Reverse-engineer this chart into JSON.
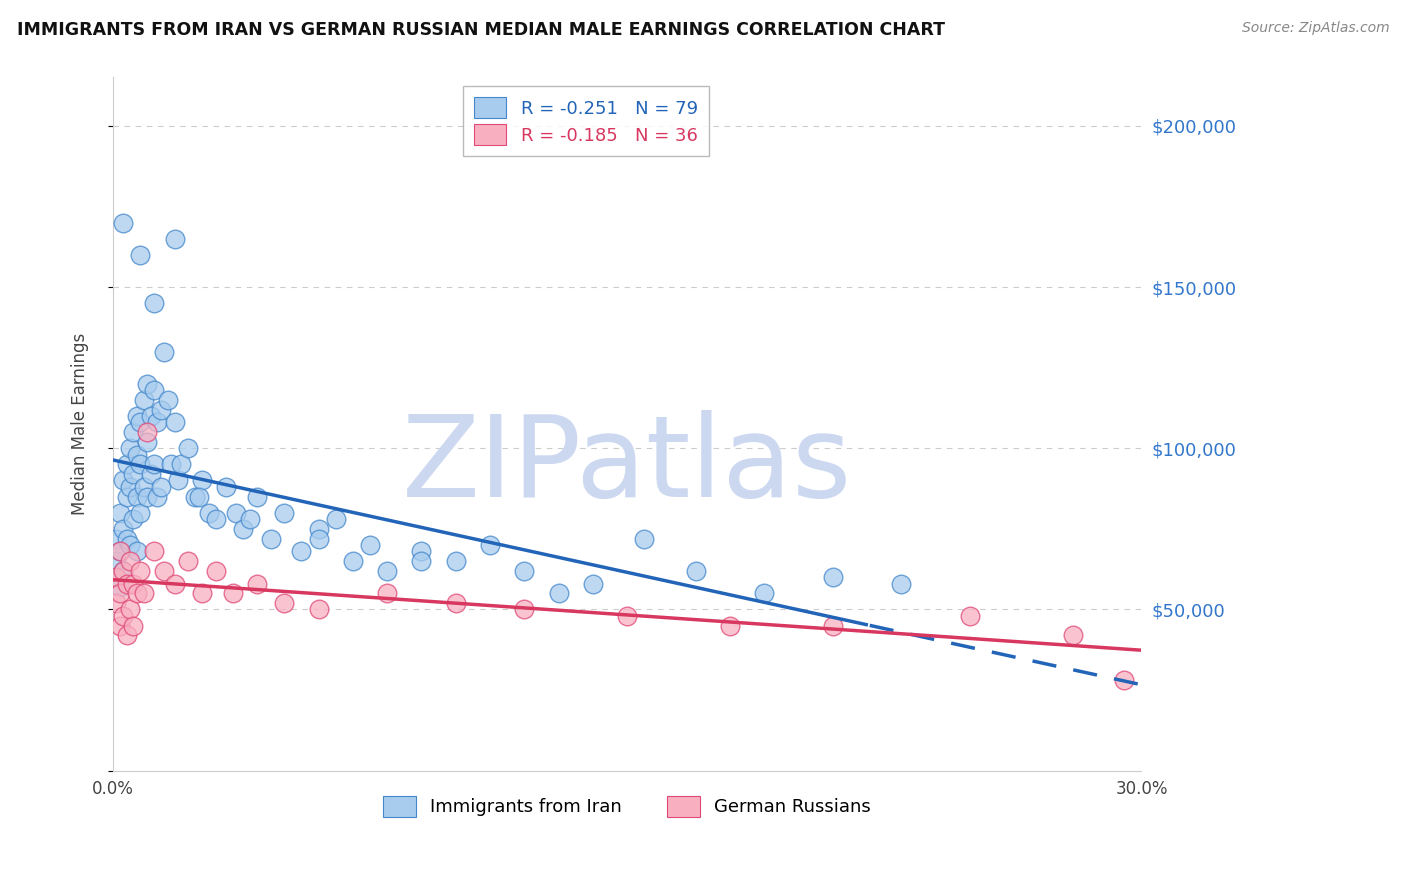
{
  "title": "IMMIGRANTS FROM IRAN VS GERMAN RUSSIAN MEDIAN MALE EARNINGS CORRELATION CHART",
  "source": "Source: ZipAtlas.com",
  "ylabel": "Median Male Earnings",
  "xlim": [
    0.0,
    0.3
  ],
  "ylim": [
    0,
    215000
  ],
  "yticks": [
    0,
    50000,
    100000,
    150000,
    200000
  ],
  "ytick_labels": [
    "",
    "$50,000",
    "$100,000",
    "$150,000",
    "$200,000"
  ],
  "xticks": [
    0.0,
    0.05,
    0.1,
    0.15,
    0.2,
    0.25,
    0.3
  ],
  "xtick_labels": [
    "0.0%",
    "",
    "",
    "",
    "",
    "",
    "30.0%"
  ],
  "series1_label": "Immigrants from Iran",
  "series1_color": "#a8ccee",
  "series1_edge": "#4488cc",
  "series2_label": "German Russians",
  "series2_color": "#f8b0c0",
  "series2_edge": "#e04878",
  "series1_R": "-0.251",
  "series1_N": 79,
  "series2_R": "-0.185",
  "series2_N": 36,
  "trend1_color": "#2264b8",
  "trend2_color": "#d83860",
  "trend1_solid_end": 0.22,
  "watermark": "ZIPatlas",
  "watermark_color": "#ccd8f0",
  "background_color": "#ffffff",
  "iran_x": [
    0.001,
    0.001,
    0.002,
    0.002,
    0.002,
    0.003,
    0.003,
    0.003,
    0.004,
    0.004,
    0.004,
    0.005,
    0.005,
    0.005,
    0.006,
    0.006,
    0.006,
    0.007,
    0.007,
    0.007,
    0.007,
    0.008,
    0.008,
    0.008,
    0.009,
    0.009,
    0.01,
    0.01,
    0.01,
    0.011,
    0.011,
    0.012,
    0.012,
    0.013,
    0.013,
    0.014,
    0.014,
    0.015,
    0.016,
    0.017,
    0.018,
    0.019,
    0.02,
    0.022,
    0.024,
    0.026,
    0.028,
    0.03,
    0.033,
    0.036,
    0.038,
    0.042,
    0.046,
    0.05,
    0.055,
    0.06,
    0.065,
    0.07,
    0.075,
    0.08,
    0.09,
    0.1,
    0.11,
    0.12,
    0.14,
    0.155,
    0.17,
    0.19,
    0.21,
    0.23,
    0.003,
    0.008,
    0.012,
    0.018,
    0.025,
    0.04,
    0.06,
    0.09,
    0.13
  ],
  "iran_y": [
    72000,
    65000,
    80000,
    68000,
    57000,
    90000,
    75000,
    62000,
    95000,
    85000,
    72000,
    100000,
    88000,
    70000,
    105000,
    92000,
    78000,
    110000,
    98000,
    85000,
    68000,
    108000,
    95000,
    80000,
    115000,
    88000,
    120000,
    102000,
    85000,
    110000,
    92000,
    118000,
    95000,
    108000,
    85000,
    112000,
    88000,
    130000,
    115000,
    95000,
    108000,
    90000,
    95000,
    100000,
    85000,
    90000,
    80000,
    78000,
    88000,
    80000,
    75000,
    85000,
    72000,
    80000,
    68000,
    75000,
    78000,
    65000,
    70000,
    62000,
    68000,
    65000,
    70000,
    62000,
    58000,
    72000,
    62000,
    55000,
    60000,
    58000,
    170000,
    160000,
    145000,
    165000,
    85000,
    78000,
    72000,
    65000,
    55000
  ],
  "russian_x": [
    0.001,
    0.001,
    0.002,
    0.002,
    0.002,
    0.003,
    0.003,
    0.004,
    0.004,
    0.005,
    0.005,
    0.006,
    0.006,
    0.007,
    0.008,
    0.009,
    0.01,
    0.012,
    0.015,
    0.018,
    0.022,
    0.026,
    0.03,
    0.035,
    0.042,
    0.05,
    0.06,
    0.08,
    0.1,
    0.12,
    0.15,
    0.18,
    0.21,
    0.25,
    0.28,
    0.295
  ],
  "russian_y": [
    60000,
    52000,
    68000,
    55000,
    45000,
    62000,
    48000,
    58000,
    42000,
    65000,
    50000,
    58000,
    45000,
    55000,
    62000,
    55000,
    105000,
    68000,
    62000,
    58000,
    65000,
    55000,
    62000,
    55000,
    58000,
    52000,
    50000,
    55000,
    52000,
    50000,
    48000,
    45000,
    45000,
    48000,
    42000,
    28000
  ]
}
